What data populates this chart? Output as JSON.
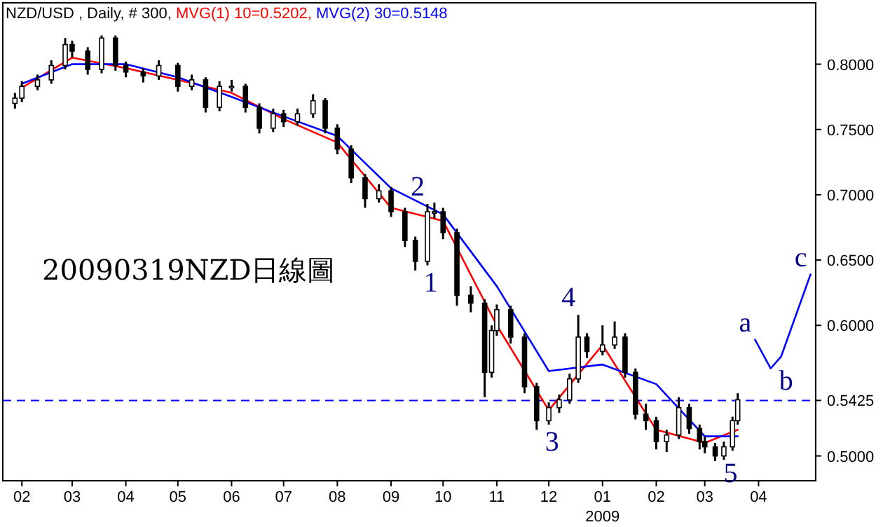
{
  "chart_data": {
    "type": "candlestick",
    "title": "NZD/USD , Daily, # 300,",
    "subtitle": [
      "MVG(1) 10=0.5202,",
      "MVG(2) 30=0.5148"
    ],
    "xlabel": "2009",
    "x": [
      "2008-01-28",
      "2008-02-01",
      "2008-02-10",
      "2008-02-18",
      "2008-02-26",
      "2008-03-01",
      "2008-03-10",
      "2008-03-18",
      "2008-03-26",
      "2008-04-01",
      "2008-04-11",
      "2008-04-20",
      "2008-05-01",
      "2008-05-09",
      "2008-05-17",
      "2008-05-25",
      "2008-06-01",
      "2008-06-09",
      "2008-06-17",
      "2008-06-25",
      "2008-07-01",
      "2008-07-09",
      "2008-07-18",
      "2008-07-25",
      "2008-08-01",
      "2008-08-09",
      "2008-08-17",
      "2008-08-25",
      "2008-09-01",
      "2008-09-09",
      "2008-09-15",
      "2008-09-22",
      "2008-09-26",
      "2008-10-01",
      "2008-10-09",
      "2008-10-17",
      "2008-10-25",
      "2008-10-29",
      "2008-11-01",
      "2008-11-09",
      "2008-11-17",
      "2008-11-24",
      "2008-12-01",
      "2008-12-07",
      "2008-12-13",
      "2008-12-18",
      "2008-12-23",
      "2009-01-01",
      "2009-01-08",
      "2009-01-14",
      "2009-01-20",
      "2009-01-26",
      "2009-02-01",
      "2009-02-07",
      "2009-02-14",
      "2009-02-20",
      "2009-02-26",
      "2009-03-01",
      "2009-03-07",
      "2009-03-12",
      "2009-03-17",
      "2009-03-20"
    ],
    "ohlc": [
      [
        0.77,
        0.778,
        0.766,
        0.774
      ],
      [
        0.774,
        0.787,
        0.771,
        0.783
      ],
      [
        0.783,
        0.792,
        0.78,
        0.788
      ],
      [
        0.788,
        0.803,
        0.785,
        0.799
      ],
      [
        0.799,
        0.82,
        0.796,
        0.815
      ],
      [
        0.815,
        0.818,
        0.805,
        0.81
      ],
      [
        0.81,
        0.813,
        0.792,
        0.796
      ],
      [
        0.796,
        0.822,
        0.793,
        0.82
      ],
      [
        0.82,
        0.822,
        0.795,
        0.799
      ],
      [
        0.799,
        0.802,
        0.79,
        0.794
      ],
      [
        0.794,
        0.797,
        0.786,
        0.791
      ],
      [
        0.791,
        0.803,
        0.788,
        0.799
      ],
      [
        0.799,
        0.801,
        0.779,
        0.783
      ],
      [
        0.783,
        0.792,
        0.78,
        0.788
      ],
      [
        0.788,
        0.79,
        0.763,
        0.767
      ],
      [
        0.767,
        0.787,
        0.764,
        0.783
      ],
      [
        0.783,
        0.788,
        0.779,
        0.783
      ],
      [
        0.783,
        0.785,
        0.763,
        0.767
      ],
      [
        0.767,
        0.77,
        0.747,
        0.751
      ],
      [
        0.751,
        0.766,
        0.748,
        0.762
      ],
      [
        0.762,
        0.765,
        0.752,
        0.756
      ],
      [
        0.756,
        0.766,
        0.753,
        0.762
      ],
      [
        0.762,
        0.777,
        0.759,
        0.772
      ],
      [
        0.772,
        0.774,
        0.747,
        0.751
      ],
      [
        0.751,
        0.754,
        0.731,
        0.735
      ],
      [
        0.735,
        0.738,
        0.709,
        0.713
      ],
      [
        0.713,
        0.716,
        0.69,
        0.697
      ],
      [
        0.697,
        0.708,
        0.694,
        0.703
      ],
      [
        0.703,
        0.706,
        0.683,
        0.687
      ],
      [
        0.687,
        0.69,
        0.66,
        0.665
      ],
      [
        0.665,
        0.668,
        0.642,
        0.649
      ],
      [
        0.649,
        0.693,
        0.646,
        0.687
      ],
      [
        0.687,
        0.694,
        0.682,
        0.687
      ],
      [
        0.687,
        0.69,
        0.666,
        0.671
      ],
      [
        0.671,
        0.674,
        0.615,
        0.623
      ],
      [
        0.623,
        0.63,
        0.61,
        0.617
      ],
      [
        0.617,
        0.62,
        0.545,
        0.564
      ],
      [
        0.564,
        0.6,
        0.56,
        0.596
      ],
      [
        0.596,
        0.616,
        0.592,
        0.612
      ],
      [
        0.612,
        0.615,
        0.586,
        0.591
      ],
      [
        0.591,
        0.594,
        0.548,
        0.553
      ],
      [
        0.553,
        0.556,
        0.52,
        0.527
      ],
      [
        0.527,
        0.541,
        0.524,
        0.537
      ],
      [
        0.537,
        0.547,
        0.533,
        0.543
      ],
      [
        0.543,
        0.563,
        0.54,
        0.559
      ],
      [
        0.559,
        0.608,
        0.556,
        0.591
      ],
      [
        0.591,
        0.594,
        0.575,
        0.58
      ],
      [
        0.58,
        0.6,
        0.577,
        0.585
      ],
      [
        0.585,
        0.603,
        0.582,
        0.591
      ],
      [
        0.591,
        0.594,
        0.56,
        0.564
      ],
      [
        0.564,
        0.567,
        0.528,
        0.532
      ],
      [
        0.532,
        0.54,
        0.52,
        0.527
      ],
      [
        0.527,
        0.53,
        0.505,
        0.511
      ],
      [
        0.511,
        0.52,
        0.503,
        0.516
      ],
      [
        0.516,
        0.545,
        0.513,
        0.537
      ],
      [
        0.537,
        0.54,
        0.517,
        0.521
      ],
      [
        0.521,
        0.524,
        0.505,
        0.511
      ],
      [
        0.511,
        0.515,
        0.502,
        0.507
      ],
      [
        0.507,
        0.51,
        0.496,
        0.5
      ],
      [
        0.5,
        0.511,
        0.497,
        0.507
      ],
      [
        0.507,
        0.53,
        0.504,
        0.527
      ],
      [
        0.527,
        0.548,
        0.524,
        0.543
      ]
    ],
    "series": [
      {
        "type": "line",
        "color": "#ff0000",
        "x": [
          "2008-02-01",
          "2008-03-01",
          "2008-04-01",
          "2008-05-01",
          "2008-06-01",
          "2008-07-01",
          "2008-08-01",
          "2008-09-01",
          "2008-10-01",
          "2008-11-01",
          "2008-12-01",
          "2009-01-01",
          "2009-02-01",
          "2009-03-01",
          "2009-03-20"
        ],
        "values": [
          0.782,
          0.805,
          0.797,
          0.788,
          0.778,
          0.758,
          0.74,
          0.69,
          0.68,
          0.6,
          0.535,
          0.585,
          0.52,
          0.51,
          0.52
        ]
      },
      {
        "type": "line",
        "color": "#0000ff",
        "x": [
          "2008-02-01",
          "2008-03-01",
          "2008-04-01",
          "2008-05-01",
          "2008-06-01",
          "2008-07-01",
          "2008-08-01",
          "2008-09-01",
          "2008-10-01",
          "2008-11-01",
          "2008-12-01",
          "2009-01-01",
          "2009-02-01",
          "2009-03-01",
          "2009-03-20"
        ],
        "values": [
          0.785,
          0.8,
          0.8,
          0.79,
          0.775,
          0.76,
          0.745,
          0.705,
          0.685,
          0.63,
          0.565,
          0.57,
          0.555,
          0.515,
          0.515
        ]
      },
      {
        "type": "line",
        "color": "#0000ff",
        "x": [
          "2009-03-30",
          "2009-04-08",
          "2009-04-14",
          "2009-05-01"
        ],
        "values": [
          0.589,
          0.567,
          0.576,
          0.639
        ]
      }
    ],
    "xlim": [
      "2008-01-21",
      "2009-05-04"
    ],
    "xticks": [
      {
        "value": "2008-02-01",
        "label": "02"
      },
      {
        "value": "2008-03-01",
        "label": "03"
      },
      {
        "value": "2008-04-01",
        "label": "04"
      },
      {
        "value": "2008-05-01",
        "label": "05"
      },
      {
        "value": "2008-06-01",
        "label": "06"
      },
      {
        "value": "2008-07-01",
        "label": "07"
      },
      {
        "value": "2008-08-01",
        "label": "08"
      },
      {
        "value": "2008-09-01",
        "label": "09"
      },
      {
        "value": "2008-10-01",
        "label": "10"
      },
      {
        "value": "2008-11-01",
        "label": "11"
      },
      {
        "value": "2008-12-01",
        "label": "12"
      },
      {
        "value": "2009-01-01",
        "label": "01"
      },
      {
        "value": "2009-02-01",
        "label": "02"
      },
      {
        "value": "2009-03-01",
        "label": "03"
      },
      {
        "value": "2009-04-01",
        "label": "04"
      }
    ],
    "ylim": [
      0.481,
      0.847
    ],
    "yticks": [
      {
        "value": 0.5,
        "label": "0.5000"
      },
      {
        "value": 0.6,
        "label": "0.6000"
      },
      {
        "value": 0.65,
        "label": "0.6500"
      },
      {
        "value": 0.7,
        "label": "0.7000"
      },
      {
        "value": 0.75,
        "label": "0.7500"
      },
      {
        "value": 0.8,
        "label": "0.8000"
      }
    ],
    "ref_lines": [
      {
        "axis": "y",
        "value": 0.5425,
        "label": "0.5425",
        "color": "#0000ff",
        "line_style": "dashed"
      }
    ],
    "annotations": [
      "20090319NZD日線圖",
      {
        "text": "1",
        "x": "2008-09-15",
        "y": 0.642
      },
      {
        "text": "2",
        "x": "2008-09-22",
        "y": 0.693
      },
      {
        "text": "3",
        "x": "2008-11-24",
        "y": 0.52
      },
      {
        "text": "4",
        "x": "2008-12-18",
        "y": 0.608
      },
      {
        "text": "5",
        "x": "2009-03-07",
        "y": 0.496
      },
      {
        "text": "a",
        "x": "2009-03-30",
        "y": 0.589
      },
      {
        "text": "b",
        "x": "2009-04-08",
        "y": 0.567
      },
      {
        "text": "c",
        "x": "2009-05-01",
        "y": 0.639
      }
    ],
    "grid": false
  }
}
